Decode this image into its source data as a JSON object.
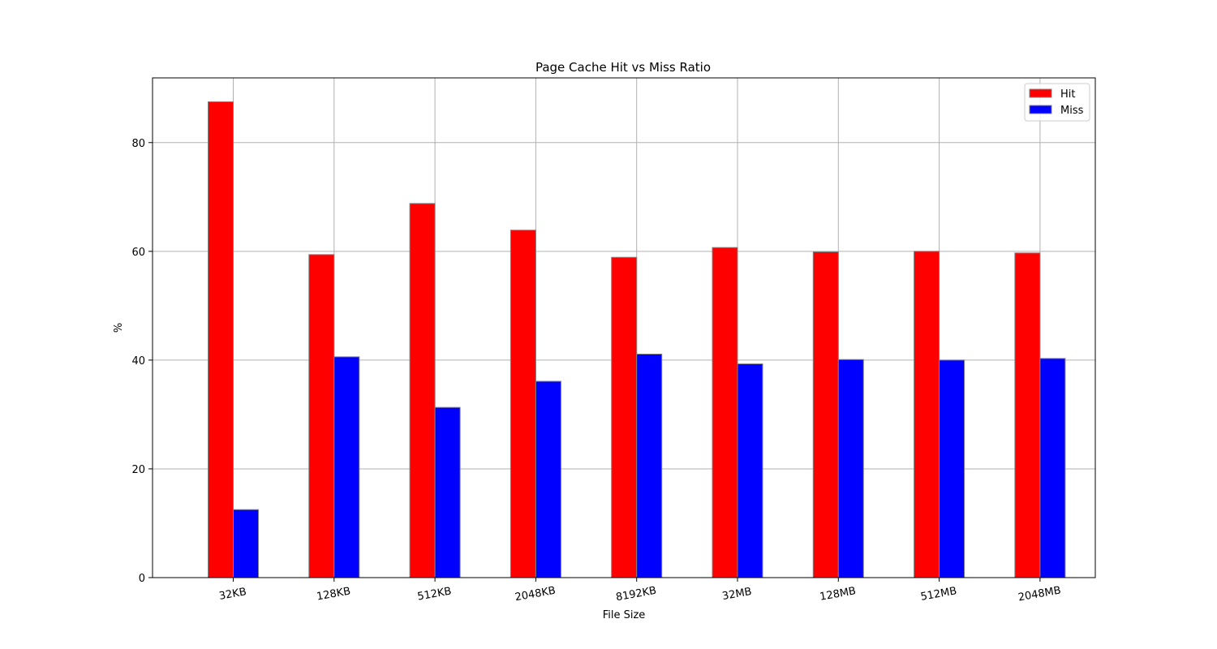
{
  "chart_data": {
    "type": "bar",
    "title": "Page Cache Hit vs Miss Ratio",
    "xlabel": "File Size",
    "ylabel": "%",
    "categories": [
      "32KB",
      "128KB",
      "512KB",
      "2048KB",
      "8192KB",
      "32MB",
      "128MB",
      "512MB",
      "2048MB"
    ],
    "series": [
      {
        "name": "Hit",
        "color": "#ff0000",
        "values": [
          87.5,
          59.4,
          68.8,
          63.9,
          58.9,
          60.7,
          59.9,
          60.0,
          59.7
        ]
      },
      {
        "name": "Miss",
        "color": "#0000ff",
        "values": [
          12.5,
          40.6,
          31.3,
          36.1,
          41.1,
          39.3,
          40.1,
          40.0,
          40.3
        ]
      }
    ],
    "ylim": [
      0,
      91.9
    ],
    "yticks": [
      0,
      20,
      40,
      60,
      80
    ],
    "grid": true,
    "legend": "top-right",
    "edge_color": "#808080"
  }
}
